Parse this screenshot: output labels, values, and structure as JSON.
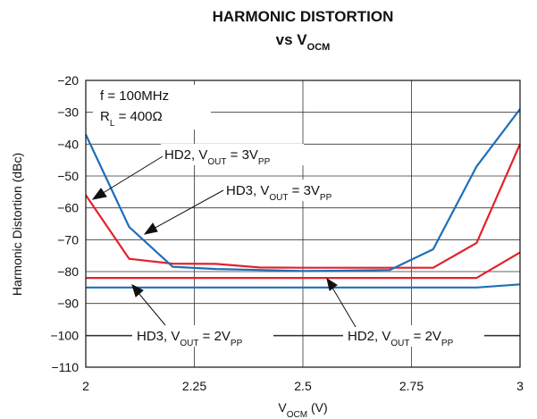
{
  "chart_data": {
    "type": "line",
    "title": "HARMONIC DISTORTION",
    "subtitle": {
      "main": "vs V",
      "sub": "OCM"
    },
    "xlabel": {
      "main": "V",
      "sub": "OCM",
      "suffix": " (V)"
    },
    "ylabel": "Harmonic Distortion (dBc)",
    "xlim": [
      2,
      3
    ],
    "ylim": [
      -110,
      -20
    ],
    "xticks": [
      2,
      2.25,
      2.5,
      2.75,
      3
    ],
    "xtick_labels": [
      "2",
      "2.25",
      "2.5",
      "2.75",
      "3"
    ],
    "yticks": [
      -20,
      -30,
      -40,
      -50,
      -60,
      -70,
      -80,
      -90,
      -100,
      -110
    ],
    "ytick_labels": [
      "−20",
      "−30",
      "−40",
      "−50",
      "−60",
      "−70",
      "−80",
      "−90",
      "−100",
      "−110"
    ],
    "grid": true,
    "conditions": [
      {
        "main": "f = 100MHz",
        "sub": "",
        "suffix": ""
      },
      {
        "main": "R",
        "sub": "L",
        "suffix": " = 400Ω"
      }
    ],
    "series": [
      {
        "label": {
          "pre": "HD2, V",
          "sub1": "OUT",
          "mid": " = 3V",
          "sub2": "PP"
        },
        "color": "#e2222b",
        "x": [
          2,
          2.1,
          2.2,
          2.3,
          2.4,
          2.5,
          2.6,
          2.7,
          2.8,
          2.9,
          3
        ],
        "y": [
          -56,
          -76,
          -77.5,
          -77.6,
          -78.7,
          -78.8,
          -78.8,
          -78.8,
          -78.8,
          -71,
          -40
        ]
      },
      {
        "label": {
          "pre": "HD3, V",
          "sub1": "OUT",
          "mid": " = 3V",
          "sub2": "PP"
        },
        "color": "#1f6fb8",
        "x": [
          2,
          2.1,
          2.2,
          2.3,
          2.4,
          2.5,
          2.6,
          2.7,
          2.8,
          2.9,
          3
        ],
        "y": [
          -37,
          -66,
          -78.5,
          -79.2,
          -79.5,
          -79.8,
          -79.7,
          -79.5,
          -73,
          -47,
          -29
        ]
      },
      {
        "label": {
          "pre": "HD2, V",
          "sub1": "OUT",
          "mid": " = 2V",
          "sub2": "PP"
        },
        "color": "#e2222b",
        "x": [
          2,
          2.1,
          2.2,
          2.3,
          2.4,
          2.5,
          2.6,
          2.7,
          2.8,
          2.9,
          3
        ],
        "y": [
          -82,
          -82,
          -82,
          -82,
          -82,
          -82,
          -82,
          -82,
          -82,
          -82,
          -74
        ]
      },
      {
        "label": {
          "pre": "HD3, V",
          "sub1": "OUT",
          "mid": " = 2V",
          "sub2": "PP"
        },
        "color": "#1f6fb8",
        "x": [
          2,
          2.1,
          2.2,
          2.3,
          2.4,
          2.5,
          2.6,
          2.7,
          2.8,
          2.9,
          3
        ],
        "y": [
          -85,
          -85,
          -85,
          -85,
          -85,
          -85,
          -85,
          -85,
          -85,
          -85,
          -84
        ]
      }
    ]
  }
}
